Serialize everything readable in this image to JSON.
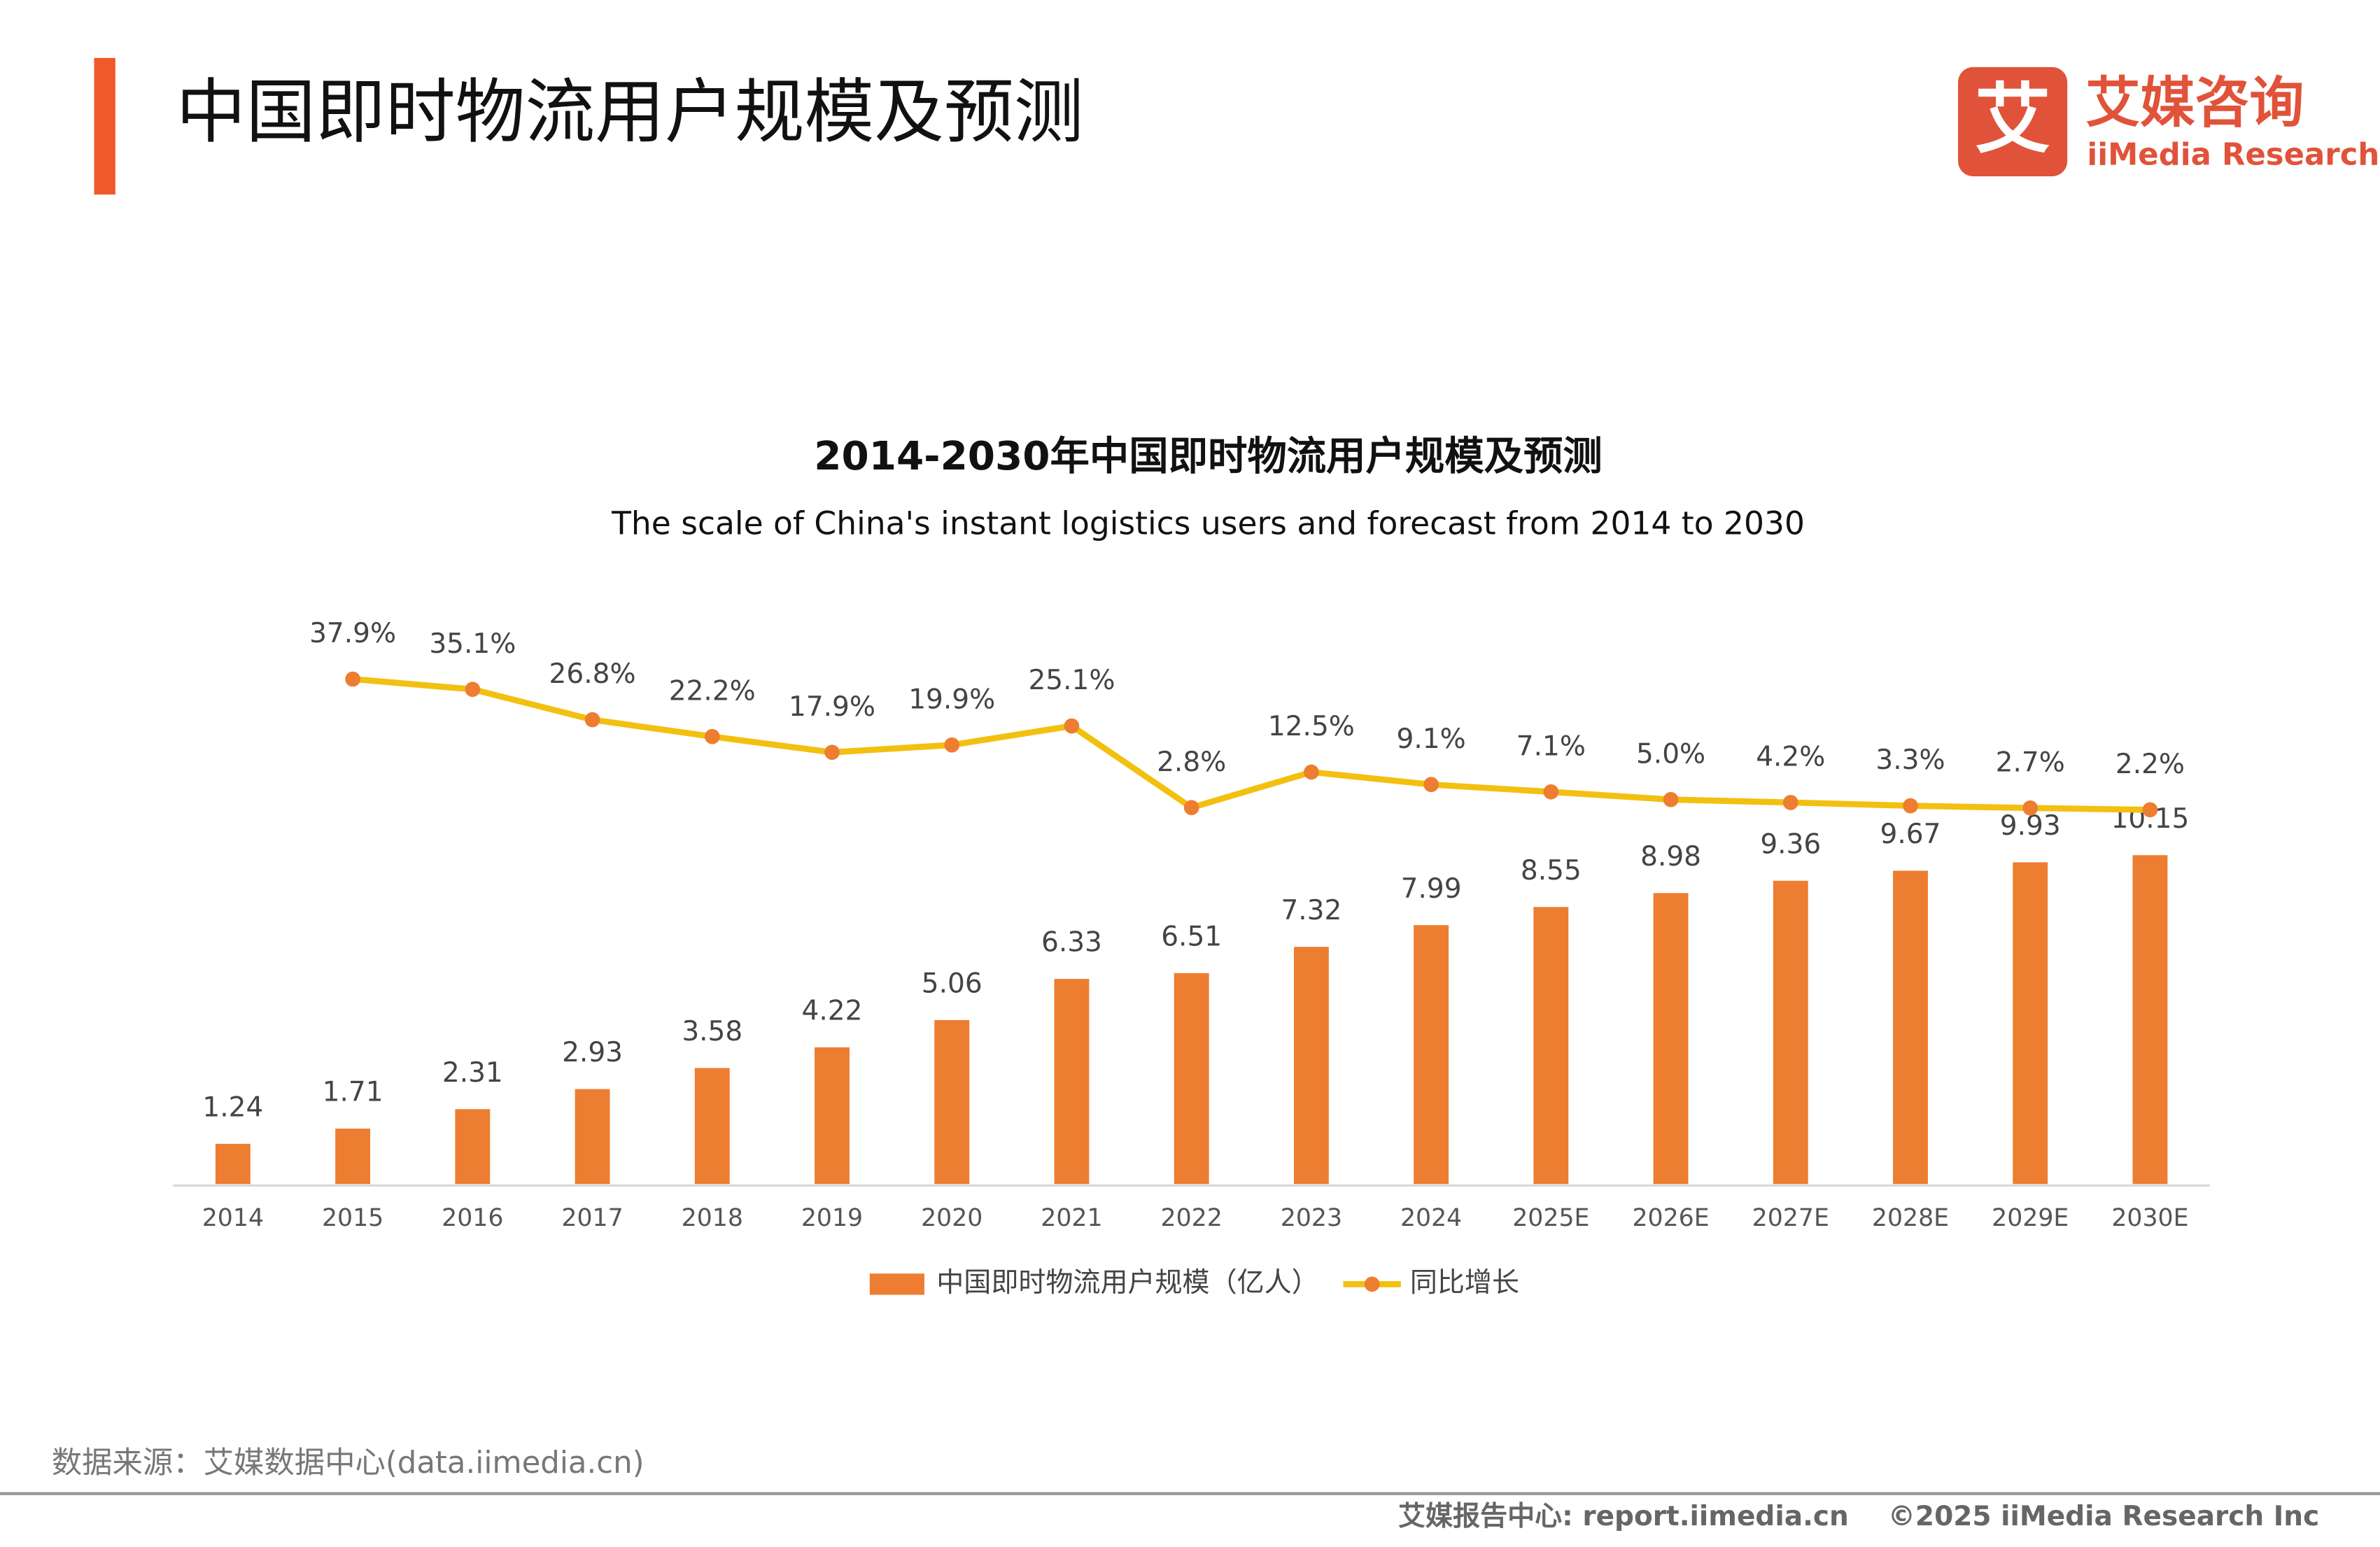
{
  "header": {
    "title": "中国即时物流用户规模及预测",
    "logo_mark": "艾",
    "logo_cn": "艾媒咨询",
    "logo_en": "iiMedia Research"
  },
  "chart_data": {
    "type": "bar",
    "title": "2014-2030年中国即时物流用户规模及预测",
    "subtitle": "The scale of China's instant logistics users and forecast from 2014 to 2030",
    "categories": [
      "2014",
      "2015",
      "2016",
      "2017",
      "2018",
      "2019",
      "2020",
      "2021",
      "2022",
      "2023",
      "2024",
      "2025E",
      "2026E",
      "2027E",
      "2028E",
      "2029E",
      "2030E"
    ],
    "series": [
      {
        "name": "中国即时物流用户规模（亿人）",
        "type": "bar",
        "color": "#ed7d31",
        "values": [
          1.24,
          1.71,
          2.31,
          2.93,
          3.58,
          4.22,
          5.06,
          6.33,
          6.51,
          7.32,
          7.99,
          8.55,
          8.98,
          9.36,
          9.67,
          9.93,
          10.15
        ]
      },
      {
        "name": "同比增长",
        "type": "line",
        "axis": "y2",
        "color": "#f2c00f",
        "marker_color": "#ed7d31",
        "values": [
          null,
          37.9,
          35.1,
          26.8,
          22.2,
          17.9,
          19.9,
          25.1,
          2.8,
          12.5,
          9.1,
          7.1,
          5.0,
          4.2,
          3.3,
          2.7,
          2.2
        ],
        "value_labels": [
          null,
          "37.9%",
          "35.1%",
          "26.8%",
          "22.2%",
          "17.9%",
          "19.9%",
          "25.1%",
          "2.8%",
          "12.5%",
          "9.1%",
          "7.1%",
          "5.0%",
          "4.2%",
          "3.3%",
          "2.7%",
          "2.2%"
        ]
      }
    ],
    "ylim": [
      0,
      17.8
    ],
    "y2lim": [
      -100,
      57.5
    ],
    "legend": "bottom"
  },
  "footer": {
    "source": "数据来源：艾媒数据中心(data.iimedia.cn)",
    "report": "艾媒报告中心: report.iimedia.cn",
    "copyright": "©2025  iiMedia Research  Inc"
  }
}
